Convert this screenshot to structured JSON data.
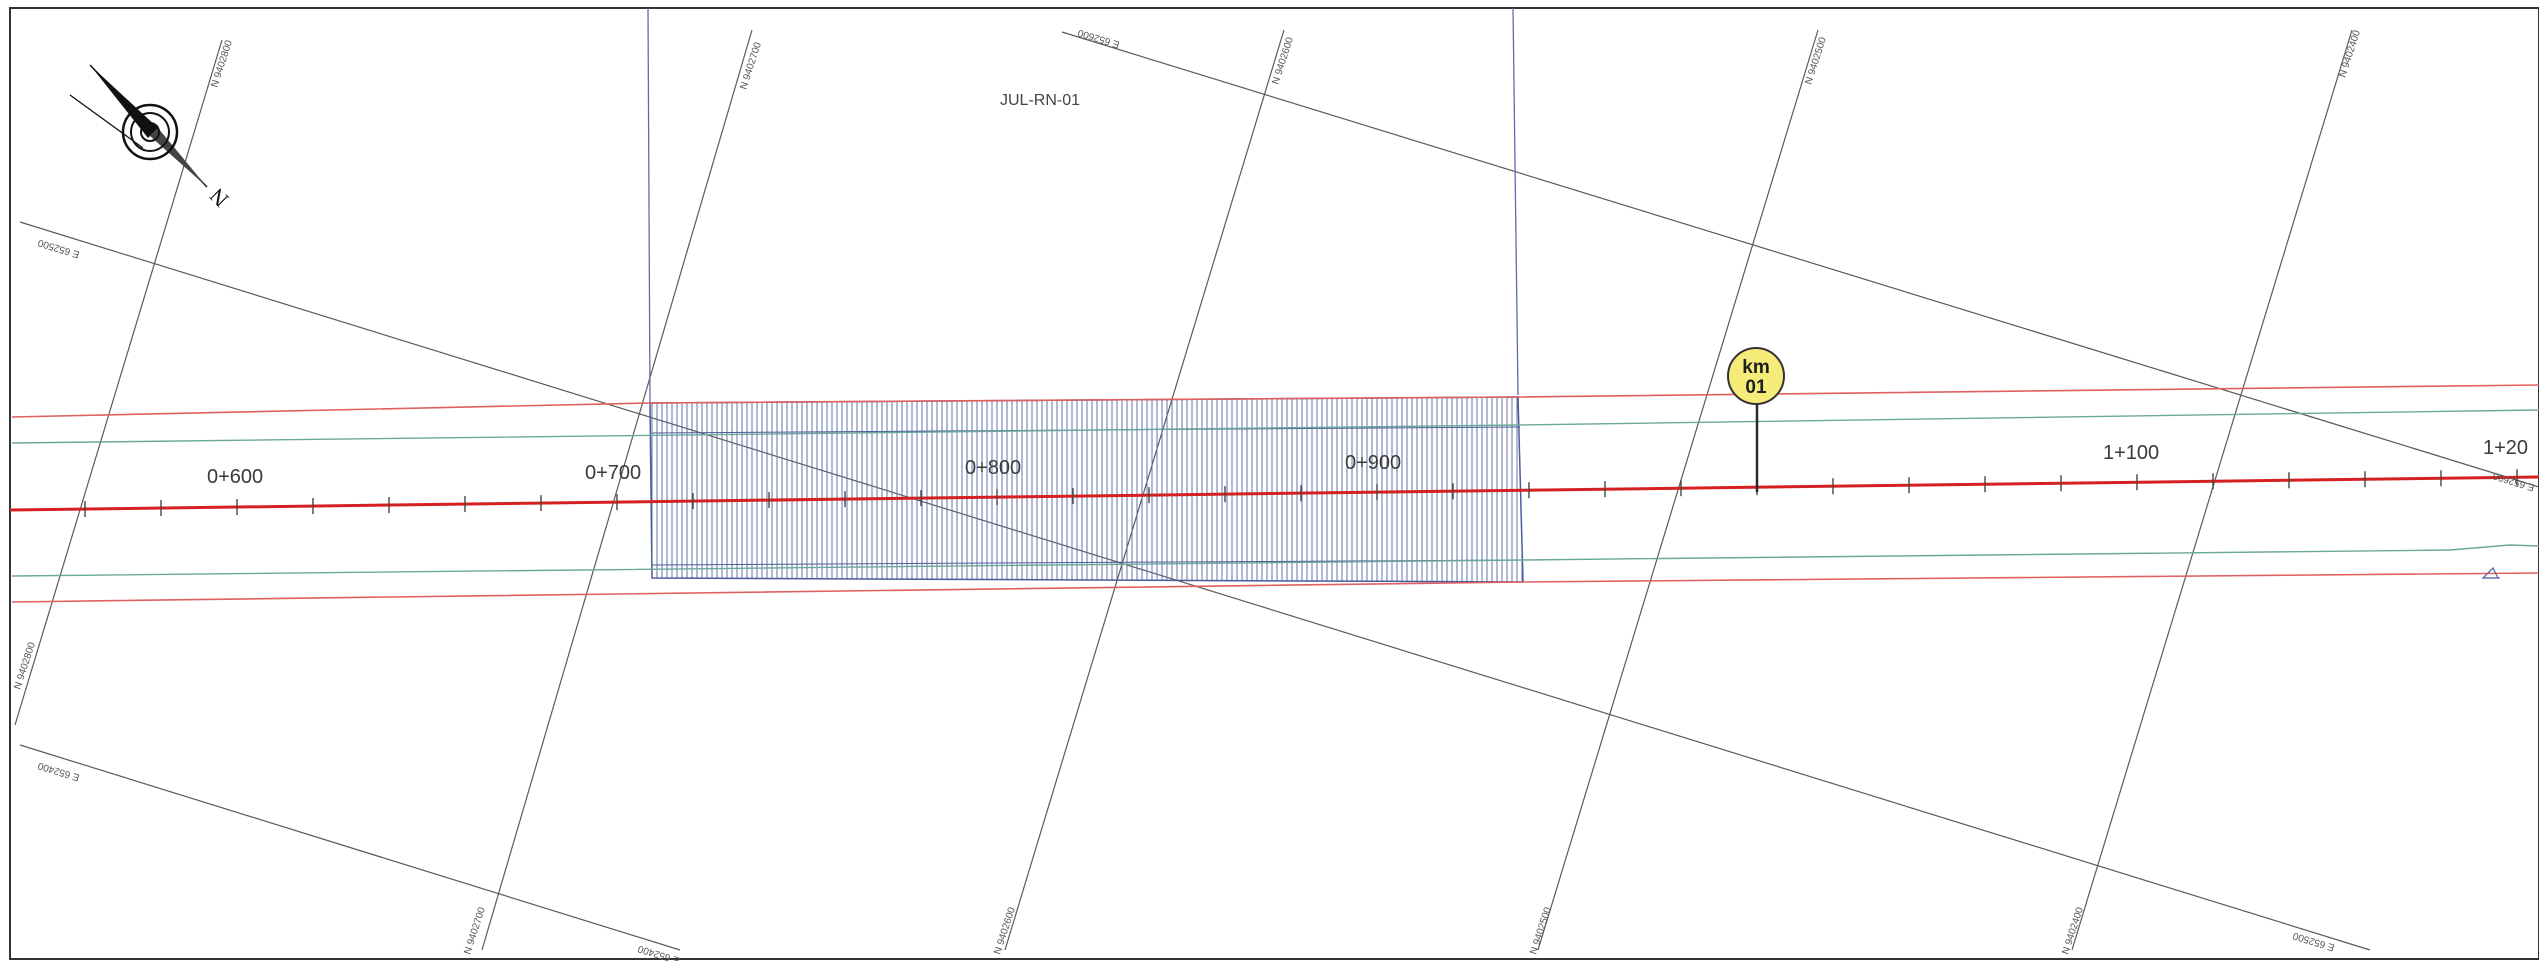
{
  "sheet_label": "JUL-RN-01",
  "north": {
    "letter": "N"
  },
  "km_marker": {
    "line1": "km",
    "line2": "01"
  },
  "stations": [
    "0+600",
    "0+700",
    "0+800",
    "0+900",
    "1+100",
    "1+20"
  ],
  "grid_labels": {
    "north": [
      "N 9402800",
      "N 9402700",
      "N 9402600",
      "N 9402500",
      "N 9402400"
    ],
    "east": [
      "E 652600",
      "E 652500",
      "E 652400"
    ],
    "edge": [
      "E 652500",
      "N 9402800",
      "E 652400",
      "N 9402700",
      "E 652400",
      "N 9402600",
      "N 9402500",
      "N 9402400",
      "E 652500",
      "E 652600"
    ]
  },
  "colors": {
    "frame": "#333333",
    "grid": "#5a5a5a",
    "alignment": "#d42020",
    "offset_line": "#e06060",
    "edge_line": "#6aa89a",
    "hatch": "#5a6da8",
    "marker_fill": "#f4eb78"
  }
}
